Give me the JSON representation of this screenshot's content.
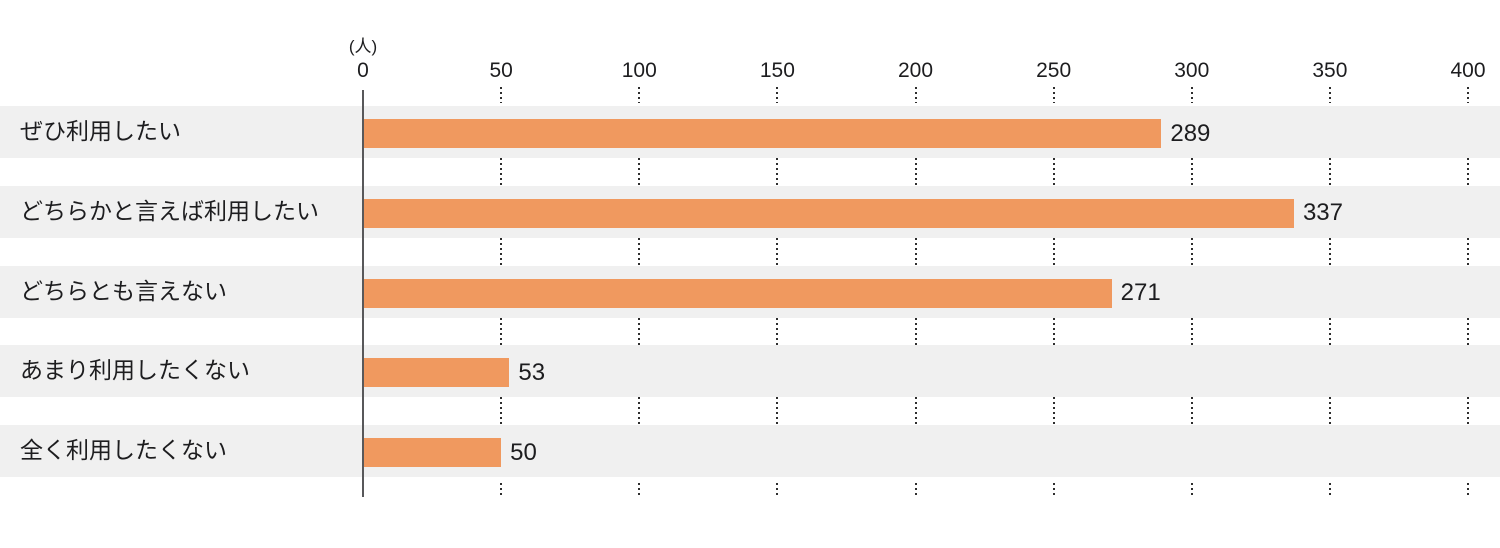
{
  "chart_data": {
    "type": "bar",
    "orientation": "horizontal",
    "title": "",
    "unit_label": "(人)",
    "categories": [
      "ぜひ利用したい",
      "どちらかと言えば利用したい",
      "どちらとも言えない",
      "あまり利用したくない",
      "全く利用したくない"
    ],
    "values": [
      289,
      337,
      271,
      53,
      50
    ],
    "xticks": [
      0,
      50,
      100,
      150,
      200,
      250,
      300,
      350,
      400
    ],
    "xlim": [
      0,
      400
    ],
    "grid": "dotted-vertical-in-gaps",
    "legend": "none",
    "bar_color": "#F0995F",
    "band_color": "#F0F0F0",
    "axis_line_color": "#58585A",
    "grid_dot_color": "#2E2E2E",
    "text_color": "#1D1D1F"
  }
}
